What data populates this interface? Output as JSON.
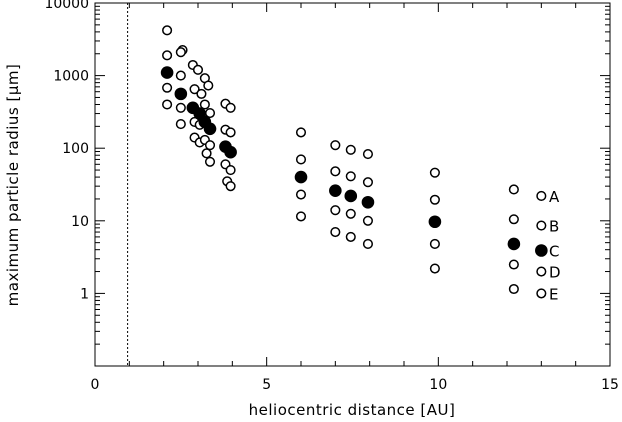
{
  "chart_data": {
    "type": "scatter",
    "title": "",
    "xlabel": "heliocentric distance [AU]",
    "ylabel": "maximum particle radius [μm]",
    "xlim": [
      0,
      15
    ],
    "ylim": [
      0.1,
      10000
    ],
    "yscale": "log",
    "grid": false,
    "x_ticks": [
      0,
      5,
      10,
      15
    ],
    "x_tick_labels": [
      "0",
      "5",
      "10",
      "15"
    ],
    "y_ticks": [
      1,
      10,
      100,
      1000,
      10000
    ],
    "y_tick_labels": [
      "1",
      "10",
      "100",
      "1000",
      "10000"
    ],
    "vertical_reference_line": {
      "x": 0.95,
      "style": "dotted"
    },
    "open_points": [
      {
        "x": 2.1,
        "y": 4200
      },
      {
        "x": 2.1,
        "y": 1900
      },
      {
        "x": 2.1,
        "y": 680
      },
      {
        "x": 2.1,
        "y": 400
      },
      {
        "x": 2.55,
        "y": 2250
      },
      {
        "x": 2.5,
        "y": 2100
      },
      {
        "x": 2.5,
        "y": 1000
      },
      {
        "x": 2.5,
        "y": 360
      },
      {
        "x": 2.5,
        "y": 215
      },
      {
        "x": 2.85,
        "y": 1400
      },
      {
        "x": 2.9,
        "y": 650
      },
      {
        "x": 2.9,
        "y": 230
      },
      {
        "x": 2.9,
        "y": 140
      },
      {
        "x": 3.0,
        "y": 1200
      },
      {
        "x": 3.1,
        "y": 560
      },
      {
        "x": 3.05,
        "y": 210
      },
      {
        "x": 3.05,
        "y": 120
      },
      {
        "x": 3.2,
        "y": 920
      },
      {
        "x": 3.2,
        "y": 400
      },
      {
        "x": 3.2,
        "y": 130
      },
      {
        "x": 3.25,
        "y": 85
      },
      {
        "x": 3.3,
        "y": 730
      },
      {
        "x": 3.35,
        "y": 305
      },
      {
        "x": 3.35,
        "y": 110
      },
      {
        "x": 3.35,
        "y": 65
      },
      {
        "x": 3.8,
        "y": 410
      },
      {
        "x": 3.8,
        "y": 180
      },
      {
        "x": 3.8,
        "y": 60
      },
      {
        "x": 3.85,
        "y": 35
      },
      {
        "x": 3.95,
        "y": 360
      },
      {
        "x": 3.95,
        "y": 165
      },
      {
        "x": 3.95,
        "y": 50
      },
      {
        "x": 3.95,
        "y": 30
      },
      {
        "x": 6.0,
        "y": 165
      },
      {
        "x": 6.0,
        "y": 70
      },
      {
        "x": 6.0,
        "y": 23
      },
      {
        "x": 6.0,
        "y": 11.5
      },
      {
        "x": 7.0,
        "y": 110
      },
      {
        "x": 7.0,
        "y": 48
      },
      {
        "x": 7.0,
        "y": 14
      },
      {
        "x": 7.0,
        "y": 7
      },
      {
        "x": 7.45,
        "y": 95
      },
      {
        "x": 7.45,
        "y": 41
      },
      {
        "x": 7.45,
        "y": 12.5
      },
      {
        "x": 7.45,
        "y": 6
      },
      {
        "x": 7.95,
        "y": 83
      },
      {
        "x": 7.95,
        "y": 34
      },
      {
        "x": 7.95,
        "y": 10
      },
      {
        "x": 7.95,
        "y": 4.8
      },
      {
        "x": 9.9,
        "y": 46
      },
      {
        "x": 9.9,
        "y": 19.5
      },
      {
        "x": 9.9,
        "y": 4.8
      },
      {
        "x": 9.9,
        "y": 2.2
      },
      {
        "x": 12.2,
        "y": 27
      },
      {
        "x": 12.2,
        "y": 10.5
      },
      {
        "x": 12.2,
        "y": 2.5
      },
      {
        "x": 12.2,
        "y": 1.15
      },
      {
        "x": 13.0,
        "y": 22
      },
      {
        "x": 13.0,
        "y": 8.6
      },
      {
        "x": 13.0,
        "y": 2.0
      },
      {
        "x": 13.0,
        "y": 1.0
      }
    ],
    "filled_points": [
      {
        "x": 2.1,
        "y": 1100
      },
      {
        "x": 2.5,
        "y": 560
      },
      {
        "x": 2.85,
        "y": 360
      },
      {
        "x": 3.05,
        "y": 300
      },
      {
        "x": 3.2,
        "y": 230
      },
      {
        "x": 3.35,
        "y": 185
      },
      {
        "x": 3.8,
        "y": 105
      },
      {
        "x": 3.95,
        "y": 88
      },
      {
        "x": 6.0,
        "y": 40
      },
      {
        "x": 7.0,
        "y": 26
      },
      {
        "x": 7.45,
        "y": 22
      },
      {
        "x": 7.95,
        "y": 18
      },
      {
        "x": 9.9,
        "y": 9.7
      },
      {
        "x": 12.2,
        "y": 4.8
      },
      {
        "x": 13.0,
        "y": 3.9
      }
    ],
    "series_labels": [
      {
        "text": "A",
        "y": 22
      },
      {
        "text": "B",
        "y": 8.6
      },
      {
        "text": "C",
        "y": 3.9
      },
      {
        "text": "D",
        "y": 2.0
      },
      {
        "text": "E",
        "y": 1.0
      }
    ]
  }
}
